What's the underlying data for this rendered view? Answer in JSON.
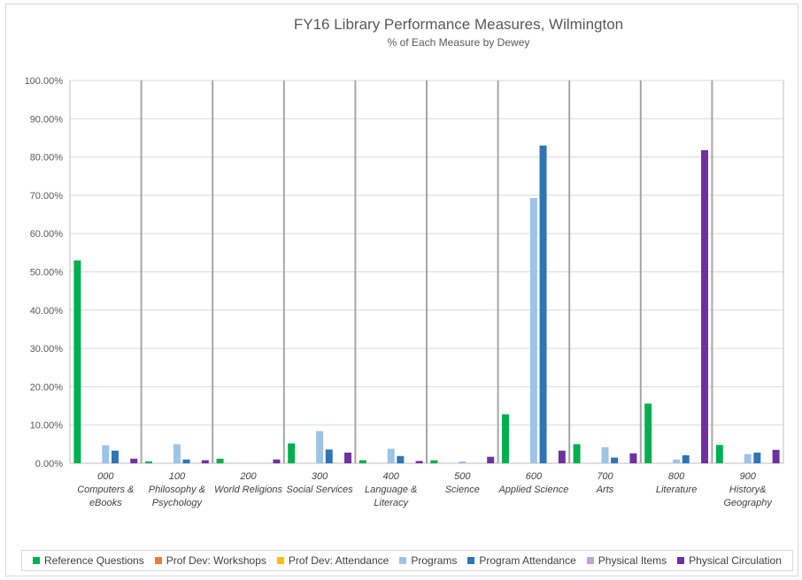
{
  "chart_data": {
    "type": "bar",
    "title": "FY16 Library Performance Measures, Wilmington",
    "subtitle": "% of Each Measure by Dewey",
    "ylim": [
      0,
      100
    ],
    "y_ticks": [
      "0.00%",
      "10.00%",
      "20.00%",
      "30.00%",
      "40.00%",
      "50.00%",
      "60.00%",
      "70.00%",
      "80.00%",
      "90.00%",
      "100.00%"
    ],
    "grid": true,
    "legend_position": "bottom",
    "categories": [
      [
        "000",
        "Computers &",
        "eBooks"
      ],
      [
        "100",
        "Philosophy &",
        "Psychology"
      ],
      [
        "200",
        "World Religions"
      ],
      [
        "300",
        "Social Services"
      ],
      [
        "400",
        "Language &",
        "Literacy"
      ],
      [
        "500",
        "Science"
      ],
      [
        "600",
        "Applied Science"
      ],
      [
        "700",
        "Arts"
      ],
      [
        "800",
        "Literature"
      ],
      [
        "900",
        "History&",
        "Geography"
      ]
    ],
    "series": [
      {
        "name": "Reference Questions",
        "color": "#00b050",
        "values": [
          53.0,
          0.5,
          1.2,
          5.2,
          0.8,
          0.8,
          12.8,
          5.0,
          15.6,
          4.8
        ]
      },
      {
        "name": "Prof Dev: Workshops",
        "color": "#ed7d31",
        "values": [
          0,
          0,
          0,
          0,
          0,
          0,
          0,
          0,
          0,
          0
        ]
      },
      {
        "name": "Prof Dev: Attendance",
        "color": "#ffc000",
        "values": [
          0,
          0,
          0,
          0,
          0,
          0,
          0,
          0,
          0,
          0
        ]
      },
      {
        "name": "Programs",
        "color": "#9dc3e6",
        "values": [
          4.7,
          5.0,
          0,
          8.4,
          3.8,
          0.5,
          69.3,
          4.2,
          1.0,
          2.4
        ]
      },
      {
        "name": "Program Attendance",
        "color": "#2e75b6",
        "values": [
          3.3,
          1.0,
          0,
          3.6,
          1.9,
          0,
          83.0,
          1.5,
          2.1,
          2.8
        ]
      },
      {
        "name": "Physical Items",
        "color": "#c9a0dc",
        "values": [
          0,
          0,
          0,
          0,
          0,
          0,
          0,
          0,
          0,
          0
        ]
      },
      {
        "name": "Physical Circulation",
        "color": "#7030a0",
        "values": [
          1.2,
          0.8,
          1.0,
          2.8,
          0.6,
          1.7,
          3.3,
          2.6,
          81.8,
          3.5
        ]
      }
    ]
  }
}
